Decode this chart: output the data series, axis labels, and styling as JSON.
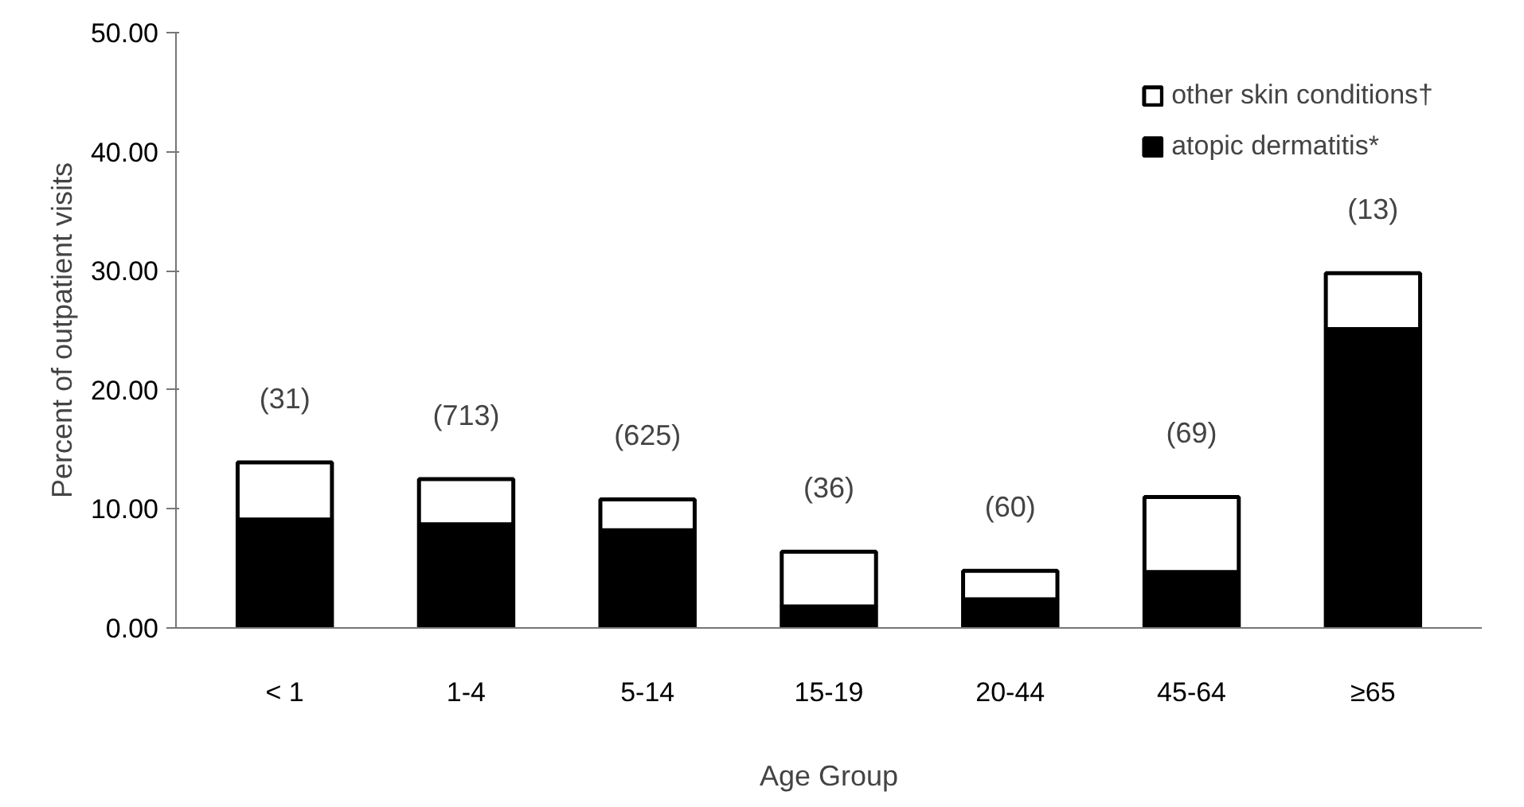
{
  "chart_data": {
    "type": "bar",
    "stacked": true,
    "xlabel": "Age Group",
    "ylabel": "Percent of outpatient visits",
    "categories": [
      "< 1",
      "1-4",
      "5-14",
      "15-19",
      "20-44",
      "45-64",
      "≥65"
    ],
    "series": [
      {
        "name": "atopic dermatitis*",
        "color": "#000000",
        "values": [
          9.1,
          8.7,
          8.2,
          1.8,
          2.4,
          4.7,
          25.1
        ]
      },
      {
        "name": "other skin conditions†",
        "color": "#ffffff",
        "values": [
          4.8,
          3.8,
          2.6,
          4.6,
          2.4,
          6.3,
          4.7
        ]
      }
    ],
    "ylim": [
      0,
      50
    ],
    "yticks": [
      {
        "value": 0,
        "label": "0.00"
      },
      {
        "value": 10,
        "label": "10.00"
      },
      {
        "value": 20,
        "label": "20.00"
      },
      {
        "value": 30,
        "label": "30.00"
      },
      {
        "value": 40,
        "label": "40.00"
      },
      {
        "value": 50,
        "label": "50.00"
      }
    ],
    "annotations": [
      {
        "text": "(31)",
        "x": "< 1",
        "y": 13.9
      },
      {
        "text": "(713)",
        "x": "1-4",
        "y": 12.5
      },
      {
        "text": "(625)",
        "x": "5-14",
        "y": 10.8
      },
      {
        "text": "(36)",
        "x": "15-19",
        "y": 6.4
      },
      {
        "text": "(60)",
        "x": "20-44",
        "y": 4.8
      },
      {
        "text": "(69)",
        "x": "45-64",
        "y": 11.0
      },
      {
        "text": "(13)",
        "x": "≥65",
        "y": 29.8
      }
    ],
    "legend": "top right",
    "grid": false
  }
}
